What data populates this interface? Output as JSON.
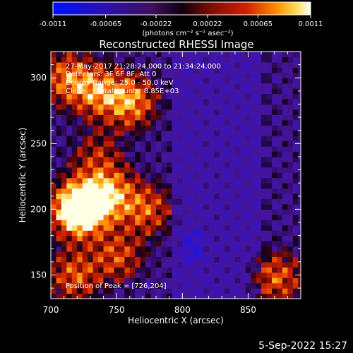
{
  "chart_data": {
    "type": "heatmap",
    "title": "Reconstructed RHESSI Image",
    "xlabel": "Heliocentric X (arcsec)",
    "ylabel": "Heliocentric Y (arcsec)",
    "xlim": [
      700,
      890
    ],
    "ylim": [
      132,
      320
    ],
    "x_ticks": [
      700,
      750,
      800,
      850
    ],
    "y_ticks": [
      150,
      200,
      250,
      300
    ],
    "colorbar": {
      "range": [
        -0.0011,
        0.0011
      ],
      "tick_values": [
        -0.0011,
        -0.00065,
        -0.00022,
        0.00022,
        0.00065,
        0.0011
      ],
      "tick_labels": [
        "-0.0011",
        "-0.00065",
        "-0.00022",
        "0.00022",
        "0.00065",
        "0.0011"
      ],
      "units": "(photons cm⁻² s⁻¹ asec⁻²)"
    },
    "annotations": [
      "27-May-2017 21:28:24.000 to 21:34:24.000",
      "Detectors: 3F 6F 8F, Att 0",
      "Energy Range: 25.0 - 50.0 keV",
      "Clean     Total counts: 8.85E+03"
    ],
    "peak_label": "Position of Peak = [726,204]",
    "bright_sources": [
      {
        "x": 726,
        "y": 204,
        "level": 1.0
      },
      {
        "x": 720,
        "y": 198,
        "level": 0.85
      },
      {
        "x": 760,
        "y": 282,
        "level": 0.75
      },
      {
        "x": 735,
        "y": 290,
        "level": 0.65
      },
      {
        "x": 712,
        "y": 300,
        "level": 0.6
      },
      {
        "x": 745,
        "y": 212,
        "level": 0.7
      },
      {
        "x": 772,
        "y": 200,
        "level": 0.55
      },
      {
        "x": 718,
        "y": 150,
        "level": 0.55
      },
      {
        "x": 750,
        "y": 165,
        "level": 0.5
      },
      {
        "x": 872,
        "y": 148,
        "level": 0.55
      },
      {
        "x": 735,
        "y": 240,
        "level": 0.35
      }
    ]
  },
  "footer": {
    "date": "5-Sep-2022 15:27"
  }
}
